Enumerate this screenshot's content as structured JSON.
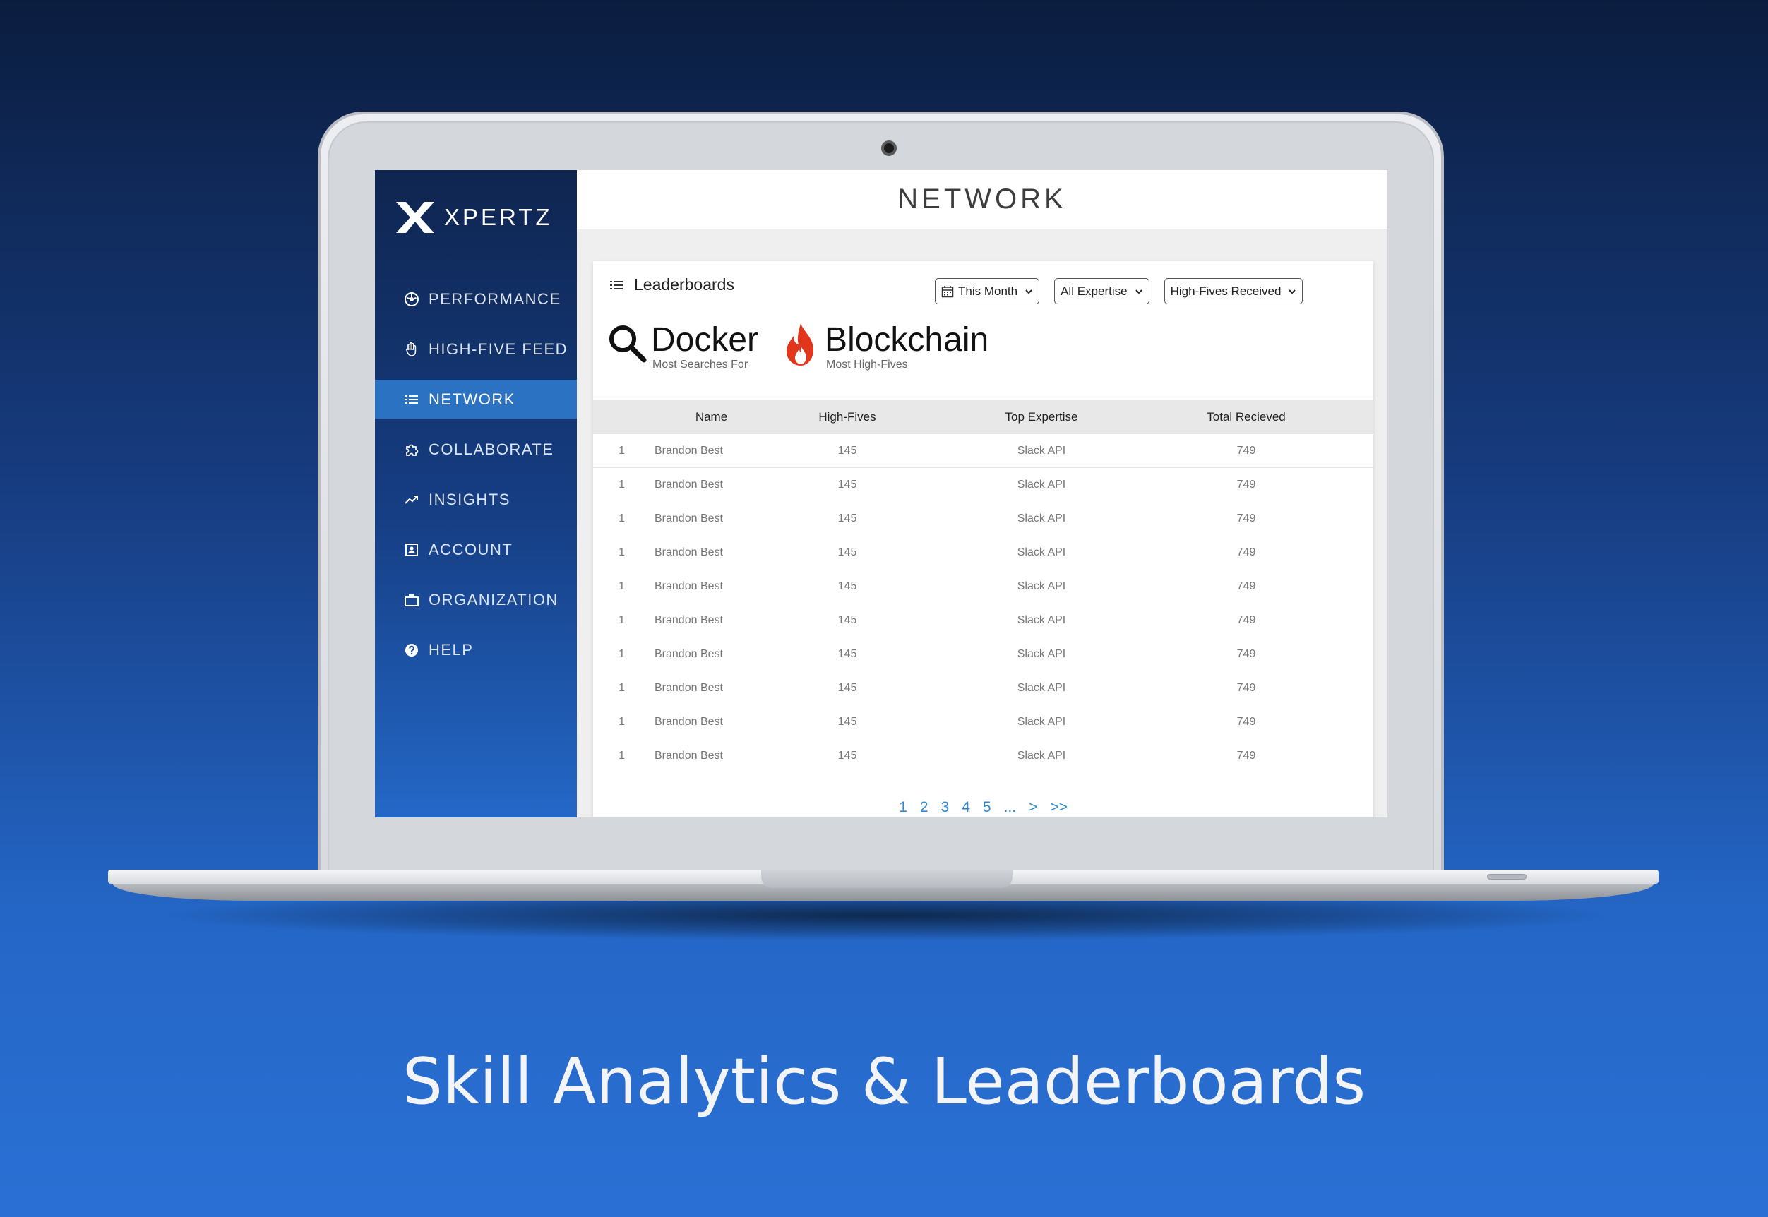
{
  "brand": {
    "name": "XPERTZ"
  },
  "page": {
    "title": "NETWORK"
  },
  "sidebar": {
    "items": [
      {
        "label": "PERFORMANCE",
        "icon": "dashboard-icon"
      },
      {
        "label": "HIGH-FIVE FEED",
        "icon": "hand-icon"
      },
      {
        "label": "NETWORK",
        "icon": "list-icon",
        "active": true
      },
      {
        "label": "COLLABORATE",
        "icon": "puzzle-icon"
      },
      {
        "label": "INSIGHTS",
        "icon": "trend-icon"
      },
      {
        "label": "ACCOUNT",
        "icon": "account-icon"
      },
      {
        "label": "ORGANIZATION",
        "icon": "briefcase-icon"
      },
      {
        "label": "HELP",
        "icon": "help-icon"
      }
    ]
  },
  "leaderboard": {
    "title": "Leaderboards",
    "filters": {
      "period": "This Month",
      "expertise": "All Expertise",
      "metric": "High-Fives Received"
    },
    "stats": [
      {
        "value": "Docker",
        "label": "Most Searches For",
        "icon": "search-icon"
      },
      {
        "value": "Blockchain",
        "label": "Most High-Fives",
        "icon": "fire-icon"
      }
    ],
    "columns": {
      "name": "Name",
      "high_fives": "High-Fives",
      "expertise": "Top Expertise",
      "total": "Total Recieved"
    },
    "rows": [
      {
        "rank": "1",
        "name": "Brandon Best",
        "high_fives": "145",
        "expertise": "Slack API",
        "total": "749"
      },
      {
        "rank": "1",
        "name": "Brandon Best",
        "high_fives": "145",
        "expertise": "Slack API",
        "total": "749"
      },
      {
        "rank": "1",
        "name": "Brandon Best",
        "high_fives": "145",
        "expertise": "Slack API",
        "total": "749"
      },
      {
        "rank": "1",
        "name": "Brandon Best",
        "high_fives": "145",
        "expertise": "Slack API",
        "total": "749"
      },
      {
        "rank": "1",
        "name": "Brandon Best",
        "high_fives": "145",
        "expertise": "Slack API",
        "total": "749"
      },
      {
        "rank": "1",
        "name": "Brandon Best",
        "high_fives": "145",
        "expertise": "Slack API",
        "total": "749"
      },
      {
        "rank": "1",
        "name": "Brandon Best",
        "high_fives": "145",
        "expertise": "Slack API",
        "total": "749"
      },
      {
        "rank": "1",
        "name": "Brandon Best",
        "high_fives": "145",
        "expertise": "Slack API",
        "total": "749"
      },
      {
        "rank": "1",
        "name": "Brandon Best",
        "high_fives": "145",
        "expertise": "Slack API",
        "total": "749"
      },
      {
        "rank": "1",
        "name": "Brandon Best",
        "high_fives": "145",
        "expertise": "Slack API",
        "total": "749"
      }
    ],
    "pagination": [
      "1",
      "2",
      "3",
      "4",
      "5",
      "...",
      ">",
      ">>"
    ]
  },
  "tagline": "Skill Analytics & Leaderboards",
  "colors": {
    "sidebar_active": "#2b72c3",
    "link": "#2f8ad6",
    "fire": "#e2361c"
  }
}
